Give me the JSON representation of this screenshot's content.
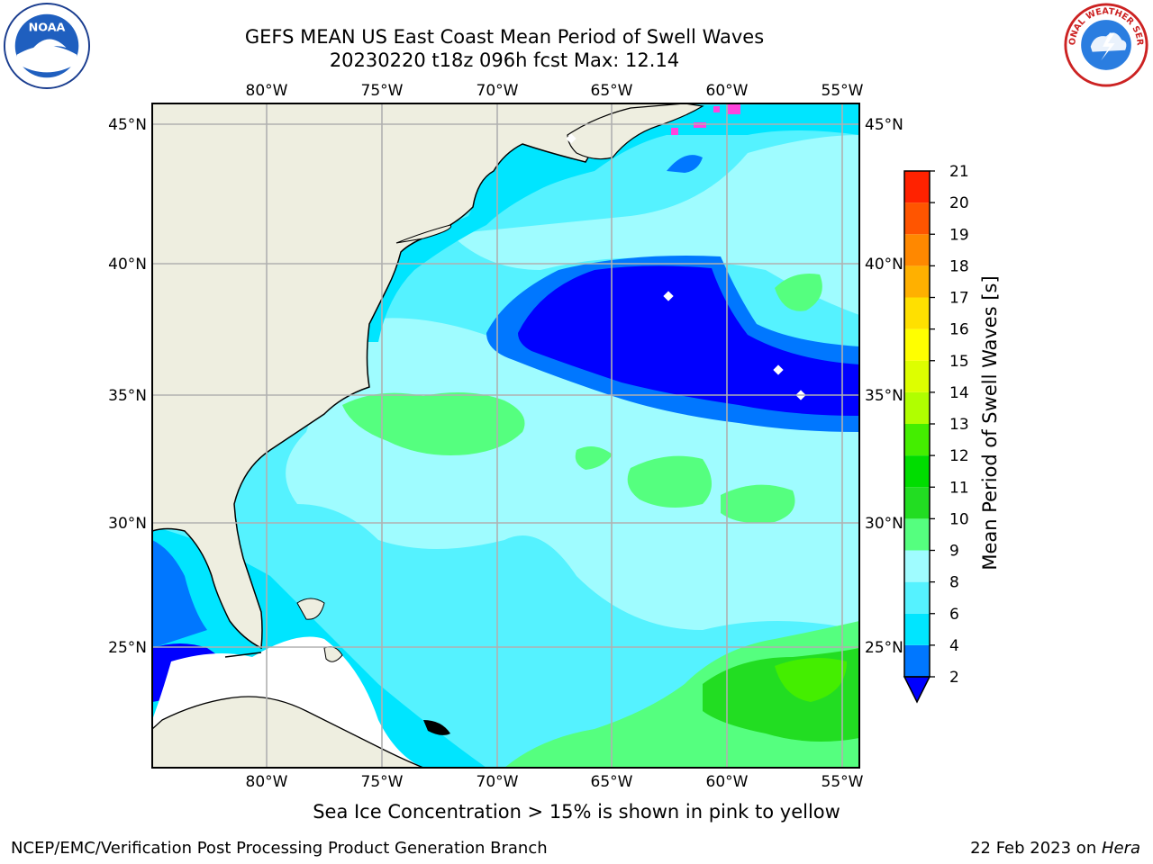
{
  "title_line1": "GEFS MEAN US East Coast Mean Period of Swell Waves",
  "title_line2": "20230220 t18z 096h fcst   Max: 12.14",
  "lon_labels": [
    "80°W",
    "75°W",
    "70°W",
    "65°W",
    "60°W",
    "55°W"
  ],
  "lat_labels": [
    "45°N",
    "40°N",
    "35°N",
    "30°N",
    "25°N"
  ],
  "colorbar": {
    "label": "Mean Period of Swell Waves [s]",
    "ticks": [
      "2",
      "4",
      "6",
      "8",
      "9",
      "10",
      "11",
      "12",
      "13",
      "14",
      "15",
      "16",
      "17",
      "18",
      "19",
      "20",
      "21"
    ],
    "colors": [
      "#0000ff",
      "#0077ff",
      "#00e5ff",
      "#55f2ff",
      "#9ffcff",
      "#55ff7f",
      "#22dd22",
      "#00dd00",
      "#44ee00",
      "#b0ff00",
      "#ddff00",
      "#ffff00",
      "#ffe000",
      "#ffb000",
      "#ff8800",
      "#ff5500",
      "#ff2200",
      "#ff0000"
    ]
  },
  "legend_colors": {
    "land": "#eeeee0",
    "ocean_low": "#00e5ff",
    "grid": "#b0b0b0",
    "ice": "#ff44dd"
  },
  "note": "Sea Ice Concentration > 15% is shown in pink to yellow",
  "footer_left": "NCEP/EMC/Verification Post Processing Product Generation Branch",
  "footer_date": "22 Feb 2023 on ",
  "footer_machine": "Hera",
  "logos": {
    "noaa": "NOAA",
    "nws": "NATIONAL WEATHER SERVICE"
  }
}
